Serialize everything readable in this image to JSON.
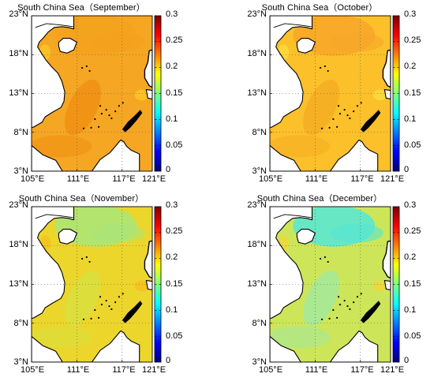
{
  "colorbar": {
    "colors": [
      "#00007f",
      "#0000ff",
      "#007fff",
      "#00ffff",
      "#7fff7f",
      "#ffff00",
      "#ff7f00",
      "#ff0000",
      "#7f0000"
    ],
    "ticks": [
      "0.3",
      "0.25",
      "0.2",
      "0.15",
      "0.1",
      "0.05",
      "0"
    ],
    "range": [
      0,
      0.3
    ]
  },
  "axes": {
    "lat_ticks": [
      "23°N",
      "18°N",
      "13°N",
      "8°N",
      "3°N"
    ],
    "lon_ticks": [
      "105°E",
      "111°E",
      "117°E",
      "121°E"
    ],
    "lat_range": [
      3,
      23
    ],
    "lon_range": [
      105,
      121
    ],
    "grid": "dotted"
  },
  "land_color": "#ffffff",
  "coast_color": "#000000",
  "panels": [
    {
      "title": "South China Sea（September）",
      "sea_color": "#f5a623",
      "north_color": "#f3a21d",
      "tongue_color": "#f08e12",
      "patch_color": "#fbc325"
    },
    {
      "title": "South China Sea（October）",
      "sea_color": "#fbc02a",
      "north_color": "#f7a628",
      "tongue_color": "#f5ab22",
      "patch_color": "#fbd93a"
    },
    {
      "title": "South China Sea（November）",
      "sea_color": "#ecd62c",
      "north_color": "#a8e67a",
      "tongue_color": "#d8e040",
      "patch_color": "#f6c21e"
    },
    {
      "title": "South China Sea（December）",
      "sea_color": "#cde659",
      "north_color": "#55e6d6",
      "tongue_color": "#a1e8a0",
      "patch_color": "#ebd83c"
    }
  ]
}
